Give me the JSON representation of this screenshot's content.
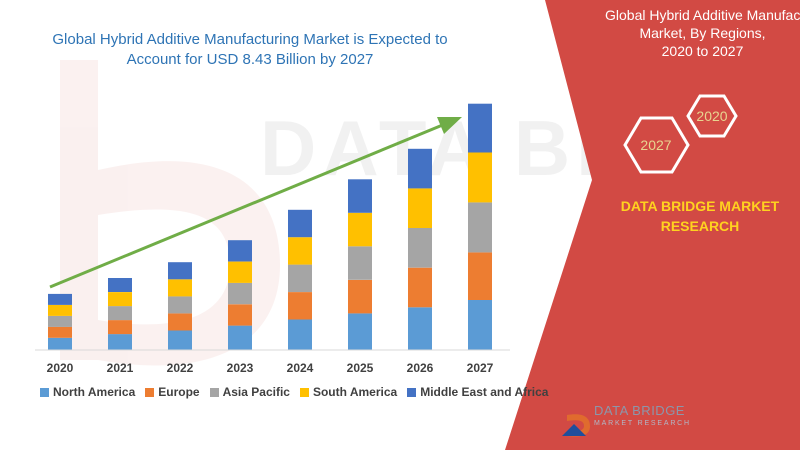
{
  "title_lines": [
    "Global Hybrid Additive Manufacturing Market is Expected to",
    "Account for USD 8.43 Billion by 2027"
  ],
  "side_panel": {
    "title_lines": [
      "Global Hybrid Additive Manufacturing",
      "Market, By Regions,",
      "2020 to 2027"
    ],
    "hex_labels": [
      "2020",
      "2027"
    ],
    "brand_lines": [
      "DATA BRIDGE MARKET",
      "RESEARCH"
    ]
  },
  "watermark": "DATA BRIDGE",
  "logo": {
    "line1": "DATA BRIDGE",
    "line2": "MARKET RESEARCH"
  },
  "colors": {
    "panel": "#d24a44",
    "arrow": "#70ad47",
    "hex_outline": "#ffffff",
    "hex_text": "#e8d48f",
    "brand_text": "#ffd21f"
  },
  "chart_data": {
    "type": "bar",
    "stacked": true,
    "categories": [
      "2020",
      "2021",
      "2022",
      "2023",
      "2024",
      "2025",
      "2026",
      "2027"
    ],
    "series": [
      {
        "name": "North America",
        "color": "#5b9bd5",
        "values": [
          2.0,
          2.6,
          3.2,
          4.0,
          5.0,
          6.0,
          7.0,
          8.2
        ]
      },
      {
        "name": "Europe",
        "color": "#ed7d31",
        "values": [
          1.8,
          2.3,
          2.8,
          3.5,
          4.5,
          5.5,
          6.5,
          7.8
        ]
      },
      {
        "name": "Asia Pacific",
        "color": "#a5a5a5",
        "values": [
          1.8,
          2.3,
          2.8,
          3.5,
          4.5,
          5.5,
          6.5,
          8.2
        ]
      },
      {
        "name": "South America",
        "color": "#ffc000",
        "values": [
          1.8,
          2.3,
          2.8,
          3.5,
          4.5,
          5.5,
          6.5,
          8.2
        ]
      },
      {
        "name": "Middle East and Africa",
        "color": "#4472c4",
        "values": [
          1.8,
          2.3,
          2.8,
          3.5,
          4.5,
          5.5,
          6.5,
          8.0
        ]
      }
    ],
    "ylim": [
      0,
      41
    ],
    "grid": false,
    "legend_position": "bottom"
  }
}
